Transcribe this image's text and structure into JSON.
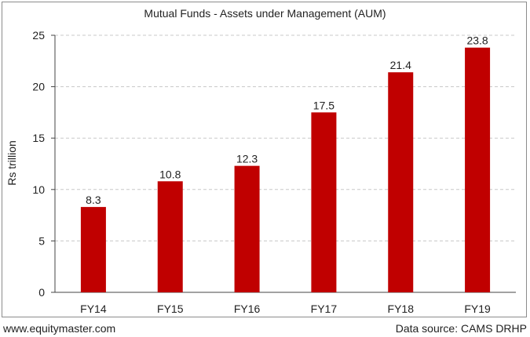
{
  "chart_data": {
    "type": "bar",
    "title": "Mutual Funds - Assets under Management (AUM)",
    "xlabel": "",
    "ylabel": "Rs trillion",
    "categories": [
      "FY14",
      "FY15",
      "FY16",
      "FY17",
      "FY18",
      "FY19"
    ],
    "values": [
      8.3,
      10.8,
      12.3,
      17.5,
      21.4,
      23.8
    ],
    "value_labels": [
      "8.3",
      "10.8",
      "12.3",
      "17.5",
      "21.4",
      "23.8"
    ],
    "ylim": [
      0,
      25
    ],
    "yticks": [
      0,
      5,
      10,
      15,
      20,
      25
    ],
    "grid": "horizontal dashed",
    "legend": "none",
    "bar_color": "#c00000"
  },
  "footer": {
    "website": "www.equitymaster.com",
    "source": "Data source: CAMS DRHP"
  }
}
